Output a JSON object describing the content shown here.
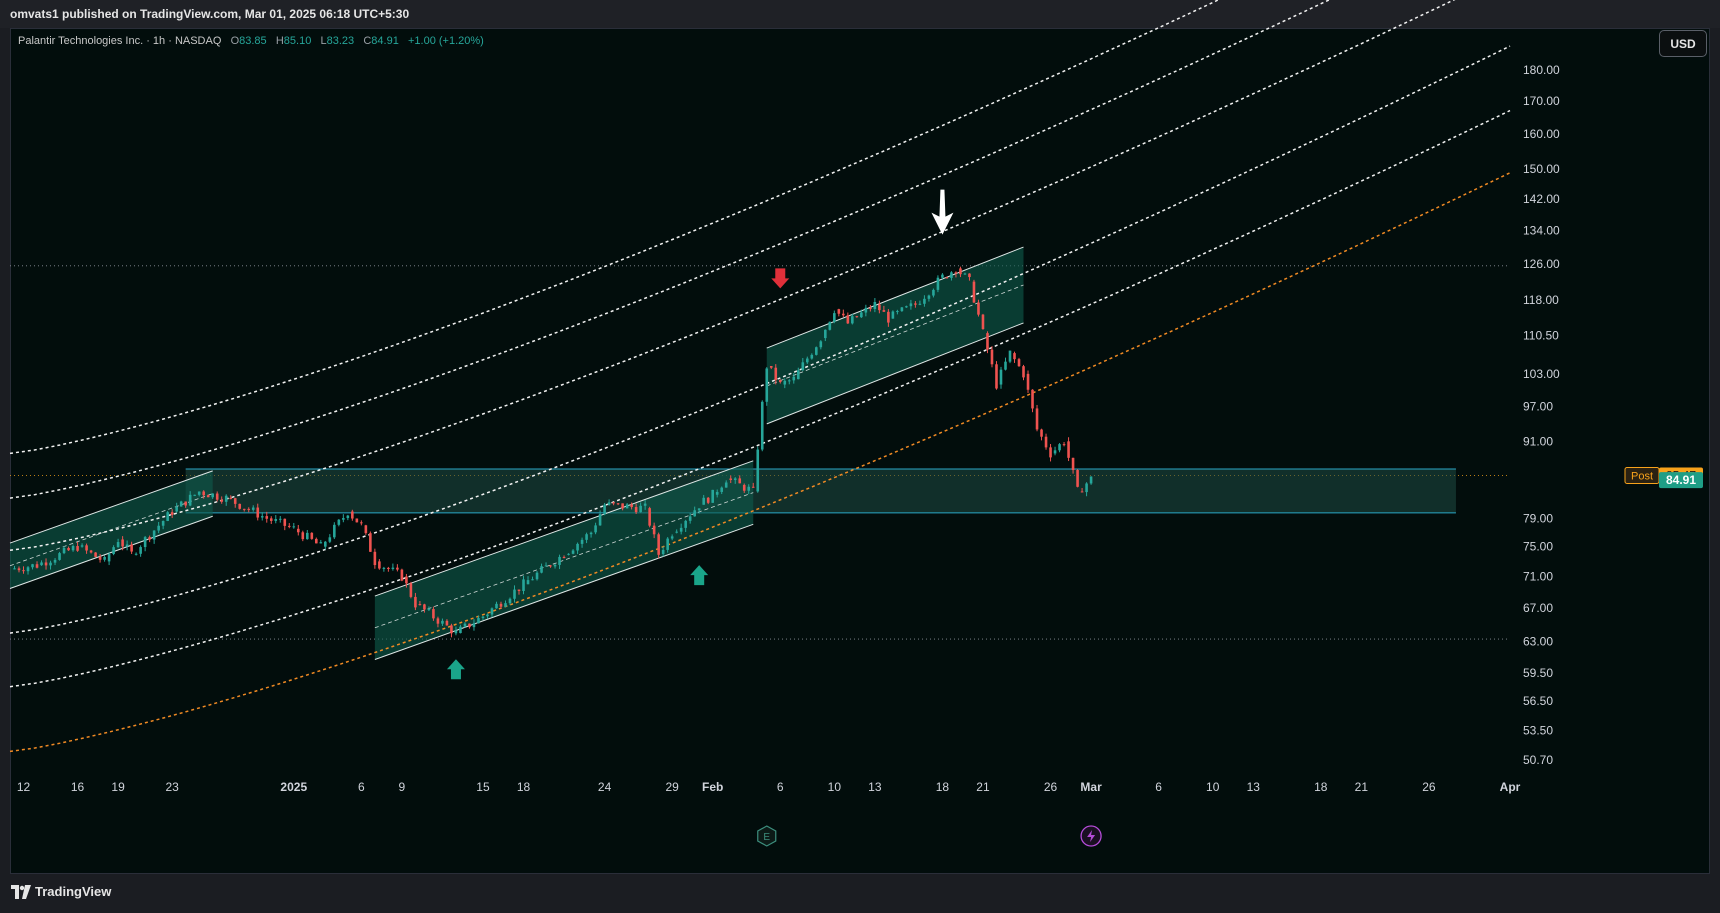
{
  "header": {
    "publisher_line": "omvats1 published on TradingView.com, Mar 01, 2025 06:18 UTC+5:30"
  },
  "legend": {
    "symbol": "Palantir Technologies Inc. · 1h · NASDAQ",
    "o_label": "O",
    "o_value": "83.85",
    "h_label": "H",
    "h_value": "85.10",
    "l_label": "L",
    "l_value": "83.23",
    "c_label": "C",
    "c_value": "84.91",
    "change": "+1.00 (+1.20%)"
  },
  "currency_button": "USD",
  "footer": {
    "brand": "TradingView"
  },
  "colors": {
    "background": "#020d0c",
    "up": "#26a69a",
    "down": "#ef5350",
    "channel_fill": "#0f5c4c",
    "support_line": "#2aa6c6",
    "orange_curve": "#f08a24",
    "white_curve": "#ffffff",
    "post_badge": "#f7a21b",
    "price_badge": "#1e9e86"
  },
  "chart_data": {
    "type": "candlestick",
    "symbol": "PLTR",
    "interval": "1h",
    "price_scale": "log",
    "ylim": [
      49.5,
      194
    ],
    "y_ticks": [
      "180.00",
      "170.00",
      "160.00",
      "150.00",
      "142.00",
      "134.00",
      "126.00",
      "118.00",
      "110.50",
      "103.00",
      "97.00",
      "91.00",
      "79.00",
      "75.00",
      "71.00",
      "67.00",
      "63.00",
      "59.50",
      "56.50",
      "53.50",
      "50.70"
    ],
    "y_tick_values": [
      180,
      170,
      160,
      150,
      142,
      134,
      126,
      118,
      110.5,
      103,
      97,
      91,
      79,
      75,
      71,
      67,
      63,
      59.5,
      56.5,
      53.5,
      50.7
    ],
    "x_ticks": [
      "12",
      "16",
      "19",
      "23",
      "2025",
      "6",
      "9",
      "15",
      "18",
      "24",
      "29",
      "Feb",
      "6",
      "10",
      "13",
      "18",
      "21",
      "26",
      "Mar",
      "6",
      "10",
      "13",
      "18",
      "21",
      "26",
      "Apr"
    ],
    "x_tick_dates": [
      "2024-12-12",
      "2024-12-16",
      "2024-12-19",
      "2024-12-23",
      "2025-01-01",
      "2025-01-06",
      "2025-01-09",
      "2025-01-15",
      "2025-01-18",
      "2025-01-24",
      "2025-01-29",
      "2025-02-01",
      "2025-02-06",
      "2025-02-10",
      "2025-02-13",
      "2025-02-18",
      "2025-02-21",
      "2025-02-26",
      "2025-03-01",
      "2025-03-06",
      "2025-03-10",
      "2025-03-13",
      "2025-03-18",
      "2025-03-21",
      "2025-03-26",
      "2025-04-01"
    ],
    "price_path": [
      [
        "2024-12-11",
        72
      ],
      [
        "2024-12-13",
        72.5
      ],
      [
        "2024-12-16",
        75
      ],
      [
        "2024-12-18",
        73
      ],
      [
        "2024-12-19",
        76
      ],
      [
        "2024-12-20",
        74
      ],
      [
        "2024-12-23",
        80
      ],
      [
        "2024-12-25",
        83
      ],
      [
        "2024-12-27",
        82
      ],
      [
        "2024-12-30",
        79
      ],
      [
        "2025-01-01",
        77.5
      ],
      [
        "2025-01-03",
        75
      ],
      [
        "2025-01-05",
        80
      ],
      [
        "2025-01-06",
        78
      ],
      [
        "2025-01-07",
        73
      ],
      [
        "2025-01-09",
        71
      ],
      [
        "2025-01-10",
        67.5
      ],
      [
        "2025-01-13",
        64
      ],
      [
        "2025-01-15",
        66
      ],
      [
        "2025-01-18",
        70
      ],
      [
        "2025-01-21",
        74
      ],
      [
        "2025-01-23",
        77
      ],
      [
        "2025-01-24",
        81
      ],
      [
        "2025-01-27",
        80.5
      ],
      [
        "2025-01-28",
        74
      ],
      [
        "2025-01-29",
        77
      ],
      [
        "2025-01-31",
        81
      ],
      [
        "2025-02-01",
        82.5
      ],
      [
        "2025-02-02",
        85
      ],
      [
        "2025-02-03",
        84
      ],
      [
        "2025-02-04",
        83
      ],
      [
        "2025-02-05",
        104.5
      ],
      [
        "2025-02-06",
        101
      ],
      [
        "2025-02-07",
        102
      ],
      [
        "2025-02-09",
        110
      ],
      [
        "2025-02-10",
        116
      ],
      [
        "2025-02-11",
        113
      ],
      [
        "2025-02-13",
        117
      ],
      [
        "2025-02-14",
        114
      ],
      [
        "2025-02-16",
        117
      ],
      [
        "2025-02-18",
        123
      ],
      [
        "2025-02-19",
        125
      ],
      [
        "2025-02-20",
        122
      ],
      [
        "2025-02-21",
        111
      ],
      [
        "2025-02-22",
        101
      ],
      [
        "2025-02-23",
        107
      ],
      [
        "2025-02-24",
        103
      ],
      [
        "2025-02-25",
        93
      ],
      [
        "2025-02-26",
        89
      ],
      [
        "2025-02-27",
        91
      ],
      [
        "2025-02-28",
        83
      ],
      [
        "2025-03-01",
        84.91
      ]
    ],
    "last_price": 84.91,
    "post_market_price": 85.47,
    "post_label": "Post",
    "horizontal_levels": [
      125.6,
      63.3
    ],
    "support_zone": [
      79.8,
      86.5
    ],
    "channels": [
      {
        "start": [
          "2024-12-11",
          75.5
        ],
        "end": [
          "2024-12-26",
          86.2
        ],
        "offset_pct": -8
      },
      {
        "start": [
          "2025-01-07",
          68.5
        ],
        "end": [
          "2025-02-04",
          87.8
        ],
        "offset_pct": -11
      },
      {
        "start": [
          "2025-02-05",
          108
        ],
        "end": [
          "2025-02-24",
          130
        ],
        "offset_pct": -13
      }
    ],
    "fan_curves": [
      {
        "color": "white",
        "start": [
          "2024-12-11",
          89
        ],
        "end": [
          "2025-04-01",
          265
        ]
      },
      {
        "color": "white",
        "start": [
          "2024-12-11",
          82
        ],
        "end": [
          "2025-04-01",
          240
        ]
      },
      {
        "color": "white",
        "start": [
          "2024-12-11",
          74.5
        ],
        "end": [
          "2025-04-01",
          215
        ]
      },
      {
        "color": "white",
        "start": [
          "2024-12-11",
          64
        ],
        "end": [
          "2025-04-01",
          188
        ]
      },
      {
        "color": "white",
        "start": [
          "2024-12-11",
          58
        ],
        "end": [
          "2025-04-01",
          167
        ]
      },
      {
        "color": "orange",
        "start": [
          "2024-12-11",
          51.5
        ],
        "end": [
          "2025-04-01",
          149
        ]
      }
    ],
    "markers": [
      {
        "type": "arrow-down",
        "color": "white",
        "date": "2025-02-18",
        "price": 133
      },
      {
        "type": "arrow-down",
        "color": "red",
        "date": "2025-02-06",
        "price": 120.5
      },
      {
        "type": "arrow-up",
        "color": "green",
        "date": "2025-01-13",
        "price": 61
      },
      {
        "type": "arrow-up",
        "color": "green",
        "date": "2025-01-31",
        "price": 72.5
      }
    ],
    "events": [
      {
        "type": "earnings",
        "label": "E",
        "date": "2025-02-05"
      },
      {
        "type": "dividend-split",
        "date": "2025-03-01"
      }
    ],
    "grid": false
  }
}
